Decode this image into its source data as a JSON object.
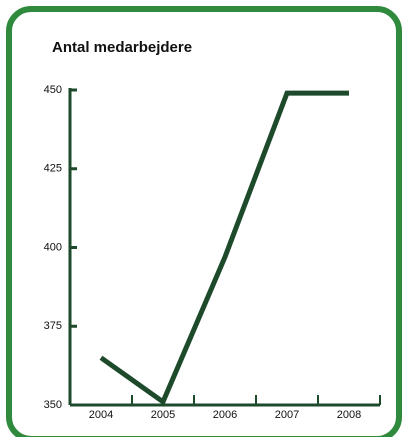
{
  "chart_data": {
    "type": "line",
    "title": "Antal medarbejdere",
    "categories": [
      "2004",
      "2005",
      "2006",
      "2007",
      "2008"
    ],
    "series": [
      {
        "name": "Antal medarbejdere",
        "color": "#1e4a2c",
        "values": [
          365,
          351,
          397,
          449,
          449
        ]
      }
    ],
    "ylim": [
      350,
      450
    ],
    "yticks": [
      350,
      375,
      400,
      425,
      450
    ],
    "grid": false
  }
}
